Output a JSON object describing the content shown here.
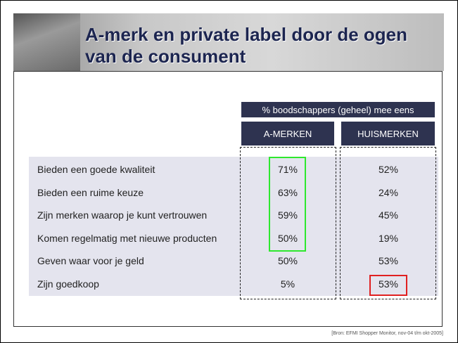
{
  "header": {
    "title_line1": "A-merk en private label door de ogen",
    "title_line2": "van de consument"
  },
  "table": {
    "group_header": "% boodschappers (geheel) mee eens",
    "columns": [
      "A-MERKEN",
      "HUISMERKEN"
    ],
    "rows": [
      [
        "Bieden een goede kwaliteit",
        "71%",
        "52%"
      ],
      [
        "Bieden een ruime keuze",
        "63%",
        "24%"
      ],
      [
        "Zijn merken waarop je kunt vertrouwen",
        "59%",
        "45%"
      ],
      [
        "Komen regelmatig met nieuwe producten",
        "50%",
        "19%"
      ],
      [
        "Geven waar voor je geld",
        "50%",
        "53%"
      ],
      [
        "Zijn goedkoop",
        "5%",
        "53%"
      ]
    ]
  },
  "footer": {
    "source": "[Bron: EFMI Shopper Monitor, nov-04 t/m okt-2005]"
  }
}
